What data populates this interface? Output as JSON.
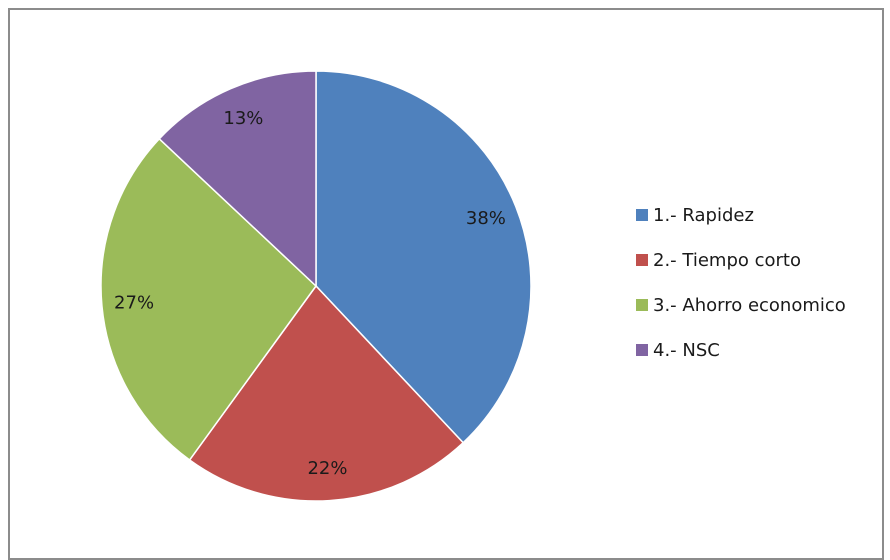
{
  "chart_data": {
    "type": "pie",
    "title": "",
    "slices": [
      {
        "label": "1.- Rapidez",
        "value": 38,
        "value_label": "38%",
        "color": "#4f81bd"
      },
      {
        "label": "2.- Tiempo corto",
        "value": 22,
        "value_label": "22%",
        "color": "#c0504d"
      },
      {
        "label": "3.- Ahorro economico",
        "value": 27,
        "value_label": "27%",
        "color": "#9bbb59"
      },
      {
        "label": "4.- NSC",
        "value": 13,
        "value_label": "13%",
        "color": "#8064a2"
      }
    ],
    "start_angle": "12 o'clock",
    "direction": "clockwise",
    "legend_position": "right"
  }
}
